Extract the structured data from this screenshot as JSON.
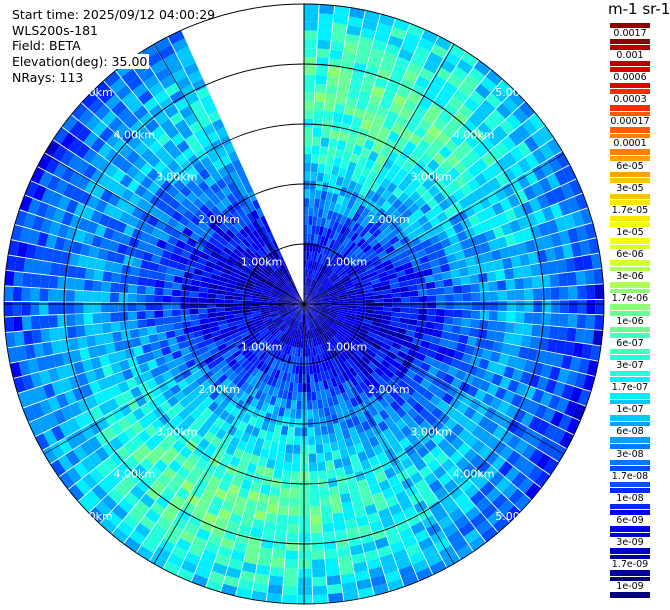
{
  "header": {
    "start_time": "Start time: 2025/09/12 04:00:29",
    "instrument": "WLS200s-181",
    "field": "Field: BETA",
    "elevation": "Elevation(deg): 35.00",
    "nrays": "NRays: 113"
  },
  "colorbar": {
    "title": "m-1 sr-1",
    "labels": [
      "0.0017",
      "0.001",
      "0.0006",
      "0.0003",
      "0.00017",
      "0.0001",
      "6e-05",
      "3e-05",
      "1.7e-05",
      "1e-05",
      "6e-06",
      "3e-06",
      "1.7e-06",
      "1e-06",
      "6e-07",
      "3e-07",
      "1.7e-07",
      "1e-07",
      "6e-08",
      "3e-08",
      "1.7e-08",
      "1e-08",
      "6e-09",
      "3e-09",
      "1.7e-09",
      "1e-09"
    ],
    "colors": [
      "#8b0000",
      "#b30000",
      "#e00000",
      "#ff2a00",
      "#ff5a00",
      "#ff7f00",
      "#ffa200",
      "#ffc400",
      "#ffe600",
      "#f4ff0a",
      "#d2ff2d",
      "#afff50",
      "#8cff73",
      "#69ff96",
      "#46ffb9",
      "#23ffdc",
      "#00f0ff",
      "#00c8ff",
      "#00a0ff",
      "#0078ff",
      "#0050ff",
      "#0028ff",
      "#0000f0",
      "#0000c8",
      "#0000a0",
      "#000078"
    ]
  },
  "chart_data": {
    "type": "heatmap",
    "projection": "polar PPI scan",
    "range_rings_km": [
      1,
      2,
      3,
      4,
      5
    ],
    "ring_labels": [
      "1.00km",
      "2.00km",
      "3.00km",
      "4.00km",
      "5.00km"
    ],
    "max_range_km": 5.0,
    "nrays": 113,
    "gap_azimuth_deg": [
      336,
      360
    ],
    "value_unit": "m-1 sr-1",
    "value_range": [
      1e-09,
      0.0017
    ],
    "log_scale": true,
    "approx_profile": [
      {
        "range_km": 0.5,
        "value": 3e-09
      },
      {
        "range_km": 1.5,
        "value": 1e-08
      },
      {
        "range_km": 2.5,
        "value": 6e-08
      },
      {
        "range_km": 3.5,
        "value": 2e-07
      },
      {
        "range_km": 4.5,
        "value": 8e-08
      },
      {
        "range_km": 5.0,
        "value": 3e-08
      }
    ]
  }
}
